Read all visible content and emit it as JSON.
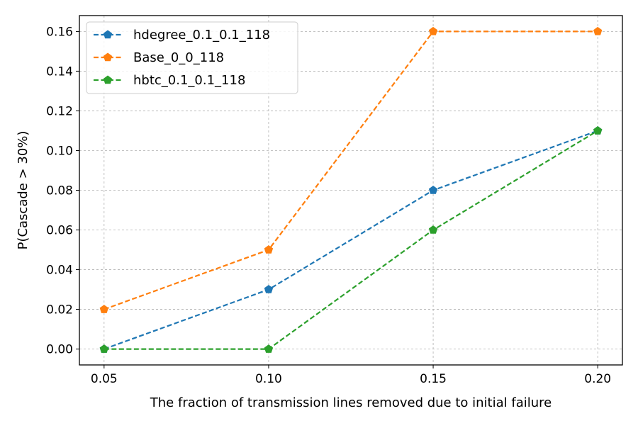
{
  "chart_data": {
    "type": "line",
    "title": "",
    "xlabel": "The fraction of transmission lines removed due to initial failure",
    "ylabel": "P(Cascade > 30%)",
    "x": [
      0.05,
      0.1,
      0.15,
      0.2
    ],
    "x_tick_labels": [
      "0.05",
      "0.10",
      "0.15",
      "0.20"
    ],
    "y_ticks": [
      0.0,
      0.02,
      0.04,
      0.06,
      0.08,
      0.1,
      0.12,
      0.14,
      0.16
    ],
    "y_tick_labels": [
      "0.00",
      "0.02",
      "0.04",
      "0.06",
      "0.08",
      "0.10",
      "0.12",
      "0.14",
      "0.16"
    ],
    "xlim": [
      0.0425,
      0.2075
    ],
    "ylim": [
      -0.008,
      0.168
    ],
    "grid": true,
    "legend_position": "top-left",
    "series": [
      {
        "name": "hdegree_0.1_0.1_118",
        "color": "#1f77b4",
        "marker": "pentagon",
        "line_style": "dashed",
        "values": [
          0.0,
          0.03,
          0.08,
          0.11
        ]
      },
      {
        "name": "Base_0_0_118",
        "color": "#ff7f0e",
        "marker": "pentagon",
        "line_style": "dashed",
        "values": [
          0.02,
          0.05,
          0.16,
          0.16
        ]
      },
      {
        "name": "hbtc_0.1_0.1_118",
        "color": "#2ca02c",
        "marker": "pentagon",
        "line_style": "dashed",
        "values": [
          0.0,
          0.0,
          0.06,
          0.11
        ]
      }
    ]
  }
}
